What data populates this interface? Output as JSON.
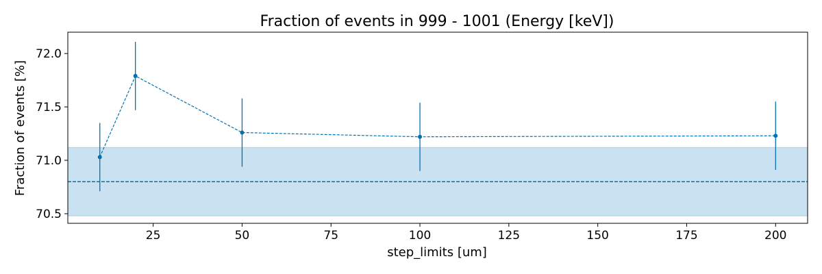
{
  "chart_data": {
    "type": "line",
    "title": "Fraction of events in 999 - 1001 (Energy [keV])",
    "xlabel": "step_limits [um]",
    "ylabel": "Fraction of events [%]",
    "xlim": [
      1,
      209
    ],
    "ylim": [
      70.41,
      72.2
    ],
    "xticks": [
      25,
      50,
      75,
      100,
      125,
      150,
      175,
      200
    ],
    "yticks": [
      70.5,
      71.0,
      71.5,
      72.0
    ],
    "ytick_labels": [
      "70.5",
      "71.0",
      "71.5",
      "72.0"
    ],
    "grid": false,
    "series": [
      {
        "x": [
          10,
          20,
          50,
          100,
          200
        ],
        "y": [
          71.03,
          71.79,
          71.26,
          71.22,
          71.23
        ],
        "yerr": [
          0.32,
          0.32,
          0.32,
          0.32,
          0.32
        ],
        "color": "#0072b2",
        "style": "dashed",
        "marker": "circle"
      }
    ],
    "reference": {
      "value": 70.8,
      "band": [
        70.48,
        71.12
      ],
      "color": "#0072b2",
      "band_color": "#c9e1f1"
    }
  }
}
